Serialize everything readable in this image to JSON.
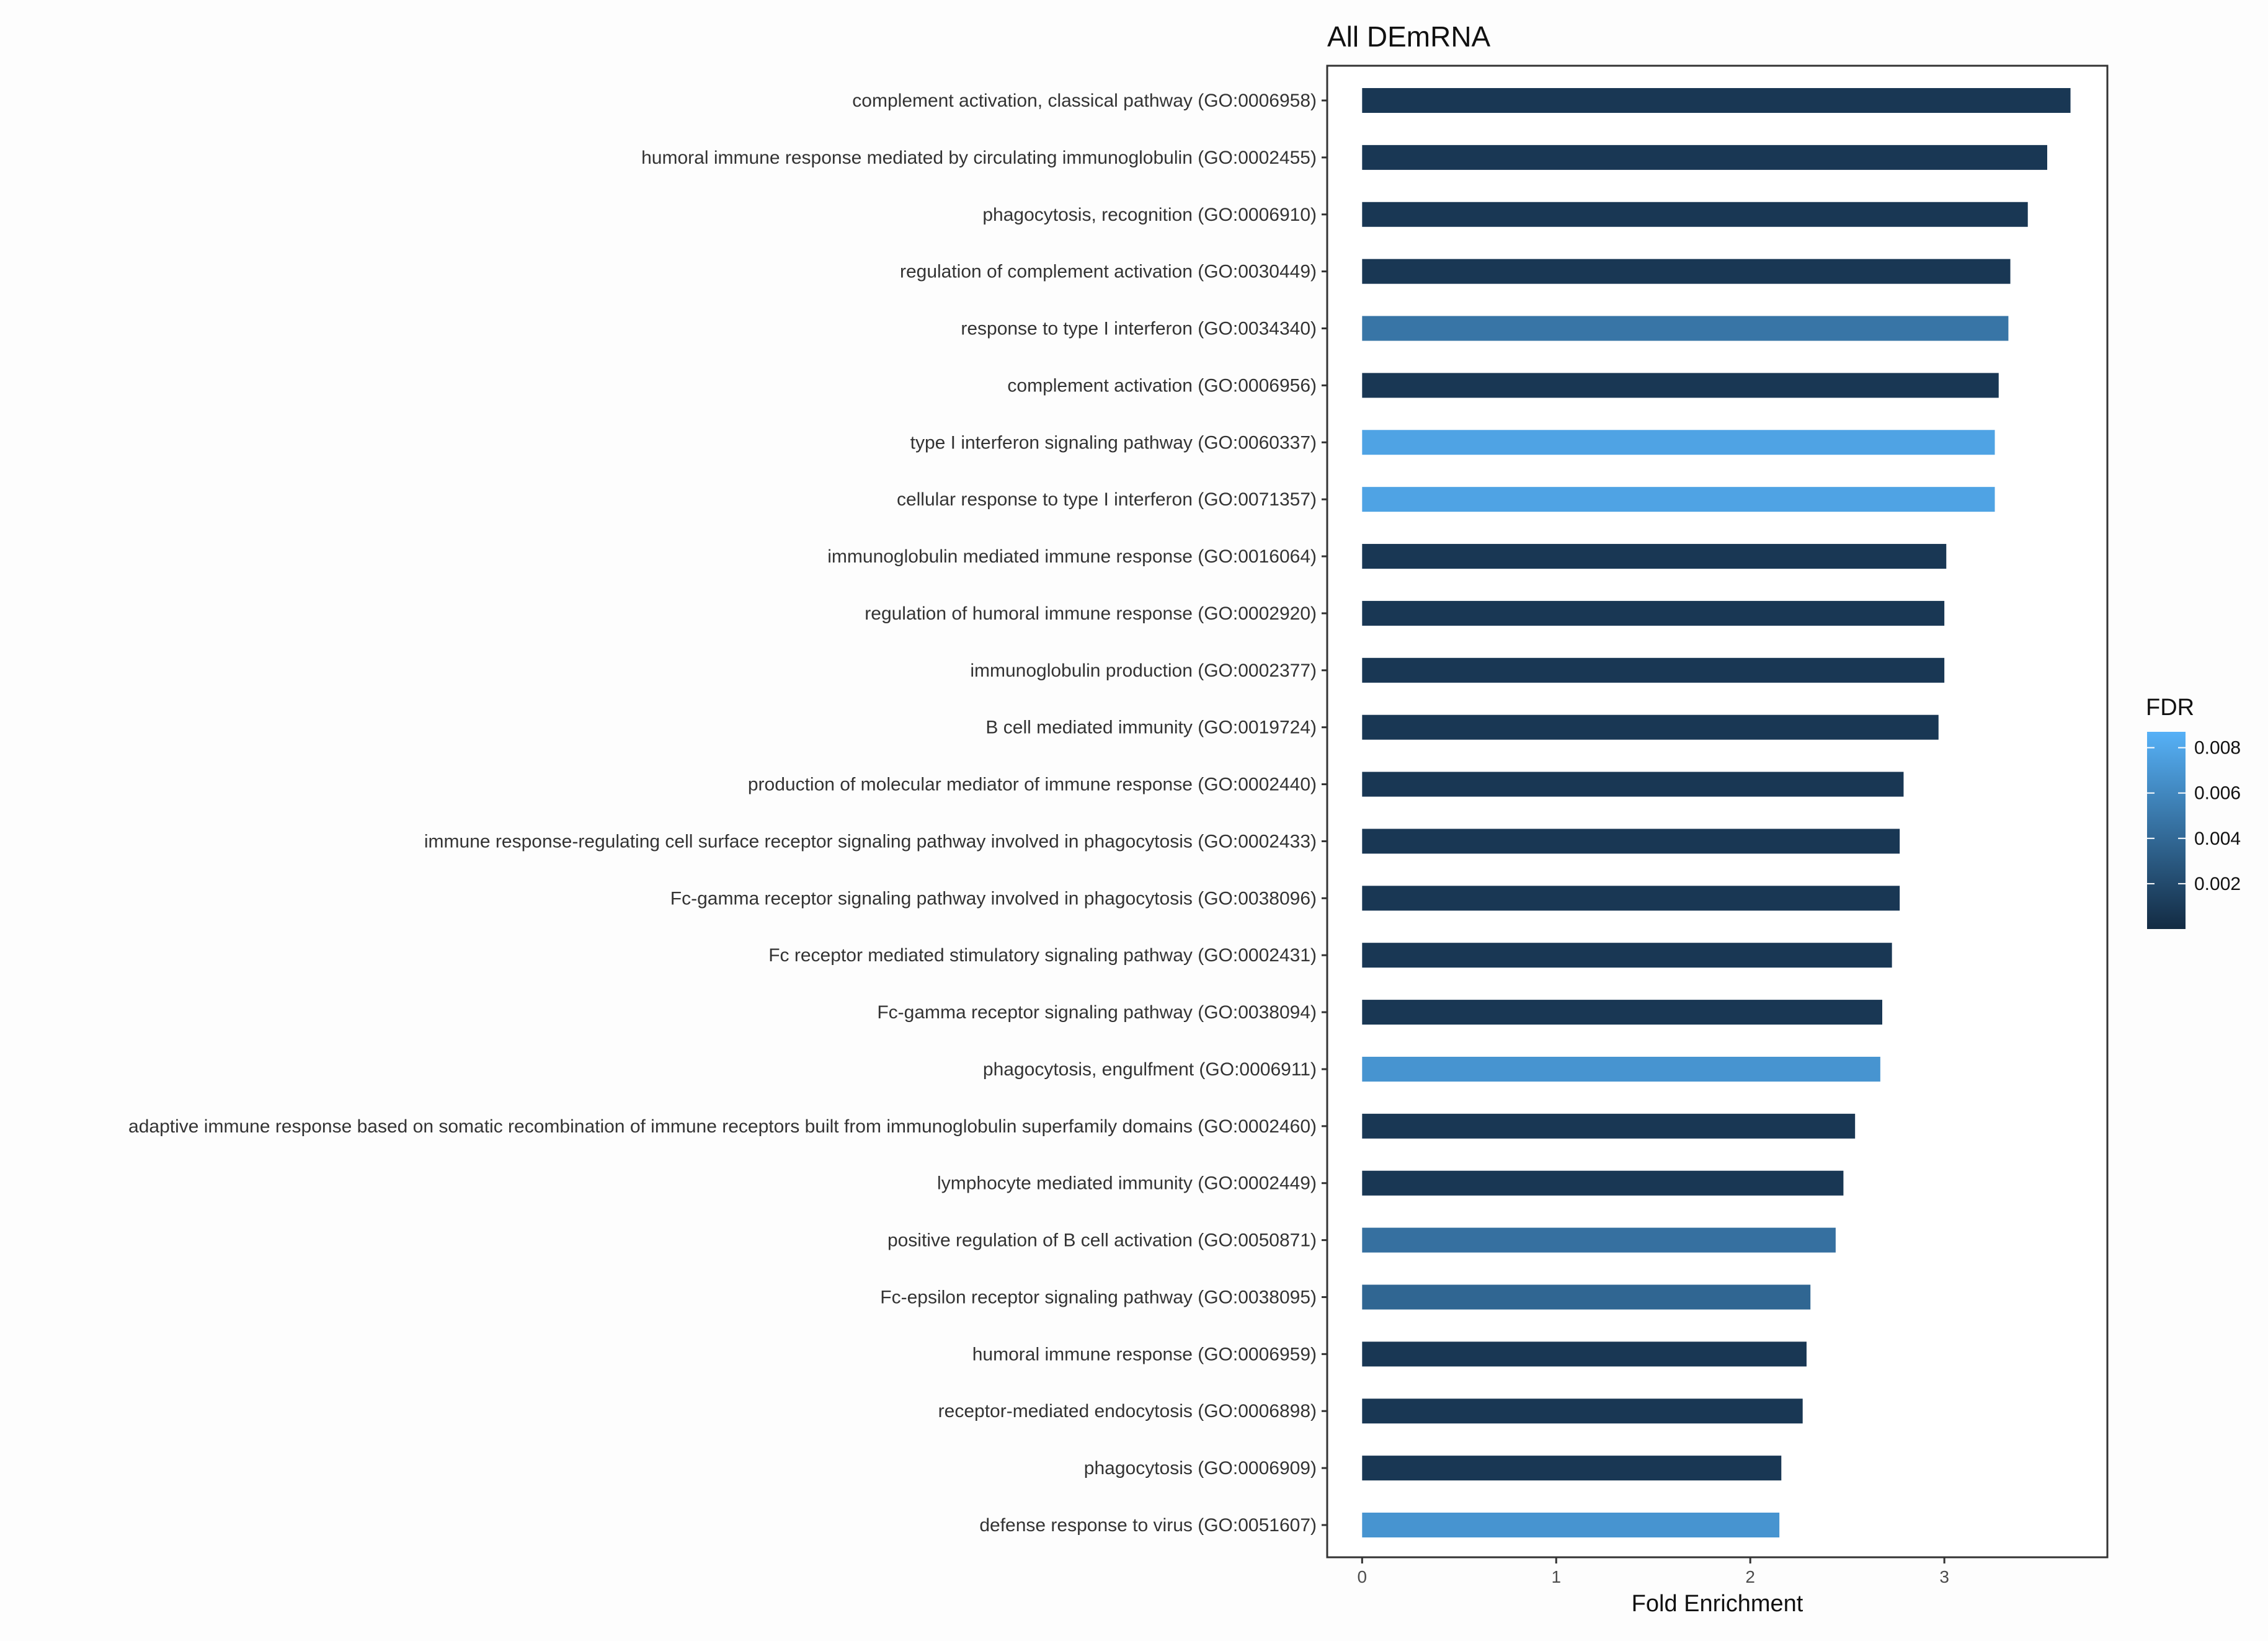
{
  "chart_data": {
    "type": "bar",
    "orientation": "horizontal",
    "title": "All DEmRNA",
    "xlabel": "Fold Enrichment",
    "ylabel": "",
    "xlim": [
      -0.18,
      3.84
    ],
    "xticks": [
      0,
      1,
      2,
      3
    ],
    "xtick_labels": [
      "0",
      "1",
      "2",
      "3"
    ],
    "grid": false,
    "categories": [
      "complement activation, classical pathway (GO:0006958)",
      "humoral immune response mediated by circulating immunoglobulin (GO:0002455)",
      "phagocytosis, recognition (GO:0006910)",
      "regulation of complement activation (GO:0030449)",
      "response to type I interferon (GO:0034340)",
      "complement activation (GO:0006956)",
      "type I interferon signaling pathway (GO:0060337)",
      "cellular response to type I interferon (GO:0071357)",
      "immunoglobulin mediated immune response (GO:0016064)",
      "regulation of humoral immune response (GO:0002920)",
      "immunoglobulin production (GO:0002377)",
      "B cell mediated immunity (GO:0019724)",
      "production of molecular mediator of immune response (GO:0002440)",
      "immune response-regulating cell surface receptor signaling pathway involved in phagocytosis (GO:0002433)",
      "Fc-gamma receptor signaling pathway involved in phagocytosis (GO:0038096)",
      "Fc receptor mediated stimulatory signaling pathway (GO:0002431)",
      "Fc-gamma receptor signaling pathway (GO:0038094)",
      "phagocytosis, engulfment (GO:0006911)",
      "adaptive immune response based on somatic recombination of immune receptors built from immunoglobulin superfamily domains (GO:0002460)",
      "lymphocyte mediated immunity (GO:0002449)",
      "positive regulation of B cell activation (GO:0050871)",
      "Fc-epsilon receptor signaling pathway (GO:0038095)",
      "humoral immune response (GO:0006959)",
      "receptor-mediated endocytosis (GO:0006898)",
      "phagocytosis (GO:0006909)",
      "defense response to virus (GO:0051607)"
    ],
    "values": [
      3.65,
      3.53,
      3.43,
      3.34,
      3.33,
      3.28,
      3.26,
      3.26,
      3.01,
      3.0,
      3.0,
      2.97,
      2.79,
      2.77,
      2.77,
      2.73,
      2.68,
      2.67,
      2.54,
      2.48,
      2.44,
      2.31,
      2.29,
      2.27,
      2.16,
      2.15
    ],
    "fdr": [
      0.0008,
      0.0008,
      0.0008,
      0.0008,
      0.0048,
      0.0008,
      0.0078,
      0.0078,
      0.0008,
      0.0008,
      0.0008,
      0.0008,
      0.0008,
      0.0008,
      0.0008,
      0.0008,
      0.0008,
      0.0068,
      0.0008,
      0.0008,
      0.0045,
      0.0038,
      0.0008,
      0.0008,
      0.0008,
      0.0068
    ],
    "legend": {
      "title": "FDR",
      "position": "right",
      "range": [
        0.0,
        0.0087
      ],
      "ticks": [
        0.002,
        0.004,
        0.006,
        0.008
      ],
      "tick_labels": [
        "0.002",
        "0.004",
        "0.006",
        "0.008"
      ],
      "low_color": "#132B43",
      "high_color": "#56B1F7"
    }
  }
}
